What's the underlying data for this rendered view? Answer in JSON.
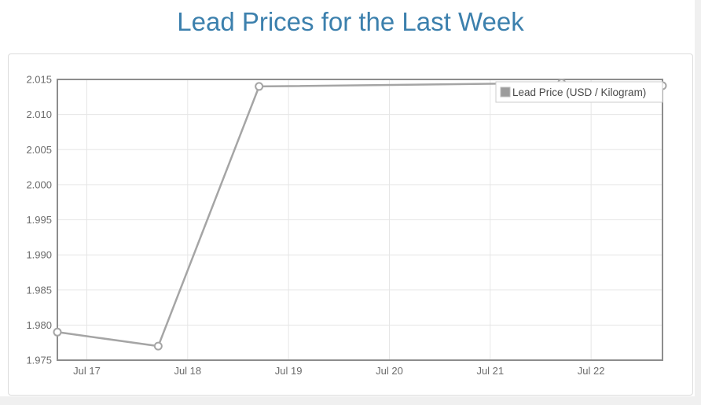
{
  "page": {
    "title": "Lead Prices for the Last Week"
  },
  "chart_data": {
    "type": "line",
    "title": "Lead Prices for the Last Week",
    "x_axis": {
      "tick_labels": [
        "Jul 17",
        "Jul 18",
        "Jul 19",
        "Jul 20",
        "Jul 21",
        "Jul 22"
      ],
      "tick_positions_day_of_july": [
        17,
        18,
        19,
        20,
        21,
        22
      ],
      "range_day_of_july": [
        16.708,
        22.708
      ]
    },
    "y_axis": {
      "tick_labels": [
        "1.975",
        "1.980",
        "1.985",
        "1.990",
        "1.995",
        "2.000",
        "2.005",
        "2.010",
        "2.015"
      ],
      "range": [
        1.975,
        2.015
      ],
      "tick_step": 0.005
    },
    "series": [
      {
        "name": "Lead Price (USD / Kilogram)",
        "points": [
          {
            "day_of_july": 16.708,
            "value": 1.979
          },
          {
            "day_of_july": 17.708,
            "value": 1.977
          },
          {
            "day_of_july": 18.708,
            "value": 2.014
          },
          {
            "day_of_july": 21.708,
            "value": 2.0145
          },
          {
            "day_of_july": 22.708,
            "value": 2.0141
          }
        ]
      }
    ],
    "legend": {
      "label": "Lead Price (USD / Kilogram)",
      "position": "top-right"
    },
    "grid": true,
    "ylim": [
      1.975,
      2.015
    ],
    "colors": {
      "title": "#3c80ad",
      "line": "#a5a5a5",
      "marker_fill": "#ffffff",
      "grid_line": "#e6e6e6",
      "plot_border": "#8d8d8d",
      "tick_label": "#6b6b6b",
      "legend_border": "#cccccc",
      "legend_text": "#4a4a4a",
      "legend_marker_fill": "#9c9c9c",
      "legend_marker_border": "#bdbdbd",
      "legend_background": "#ffffff"
    }
  }
}
